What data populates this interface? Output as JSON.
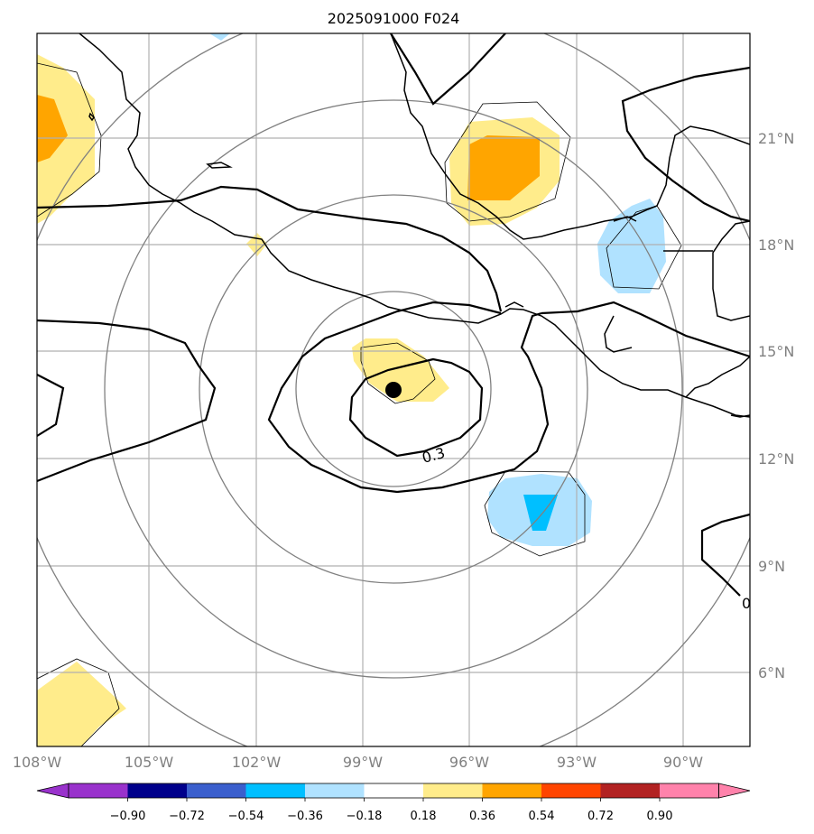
{
  "title": "2025091000 F024",
  "map": {
    "lon_labels": [
      "108°W",
      "105°W",
      "102°W",
      "99°W",
      "96°W",
      "93°W",
      "90°W"
    ],
    "lat_labels": [
      "21°N",
      "18°N",
      "15°N",
      "12°N",
      "9°N",
      "6°N"
    ],
    "contour_labels": [
      "0.3",
      "0"
    ],
    "center_marker": "storm-center",
    "colors": {
      "coast": "#000000",
      "grid": "#b0b0b0",
      "range_rings": "#808080",
      "contour": "#000000"
    }
  },
  "colorbar": {
    "labels": [
      "−0.90",
      "−0.72",
      "−0.54",
      "−0.36",
      "−0.18",
      "0.18",
      "0.36",
      "0.54",
      "0.72",
      "0.90"
    ],
    "colors": [
      "#9932cc",
      "#00008b",
      "#3a5fcd",
      "#00bfff",
      "#b0e2ff",
      "#ffffff",
      "#ffec8b",
      "#ffa500",
      "#ff4500",
      "#b22222",
      "#ff82ab"
    ]
  }
}
